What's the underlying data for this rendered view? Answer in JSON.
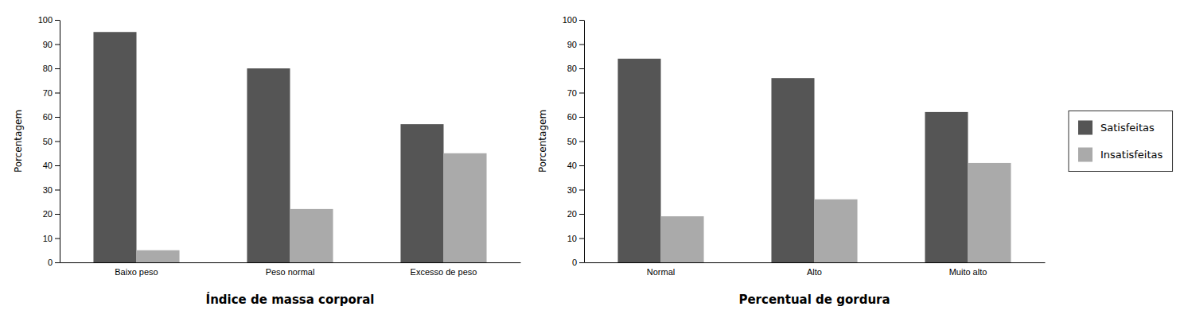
{
  "chart_data": [
    {
      "type": "bar",
      "xlabel": "Índice de massa corporal",
      "ylabel": "Porcentagem",
      "categories": [
        "Baixo peso",
        "Peso normal",
        "Excesso de peso"
      ],
      "series": [
        {
          "name": "Satisfeitas",
          "color": "#555555",
          "values": [
            95,
            80,
            57
          ]
        },
        {
          "name": "Insatisfeitas",
          "color": "#aaaaaa",
          "values": [
            5,
            22,
            45
          ]
        }
      ],
      "ylim": [
        0,
        100
      ],
      "yticks": [
        0,
        10,
        20,
        30,
        40,
        50,
        60,
        70,
        80,
        90,
        100
      ],
      "grid": false
    },
    {
      "type": "bar",
      "xlabel": "Percentual de gordura",
      "ylabel": "Porcentagem",
      "categories": [
        "Normal",
        "Alto",
        "Muito alto"
      ],
      "series": [
        {
          "name": "Satisfeitas",
          "color": "#555555",
          "values": [
            84,
            76,
            62
          ]
        },
        {
          "name": "Insatisfeitas",
          "color": "#aaaaaa",
          "values": [
            19,
            26,
            41
          ]
        }
      ],
      "ylim": [
        0,
        100
      ],
      "yticks": [
        0,
        10,
        20,
        30,
        40,
        50,
        60,
        70,
        80,
        90,
        100
      ],
      "grid": false,
      "legend": "right"
    }
  ]
}
